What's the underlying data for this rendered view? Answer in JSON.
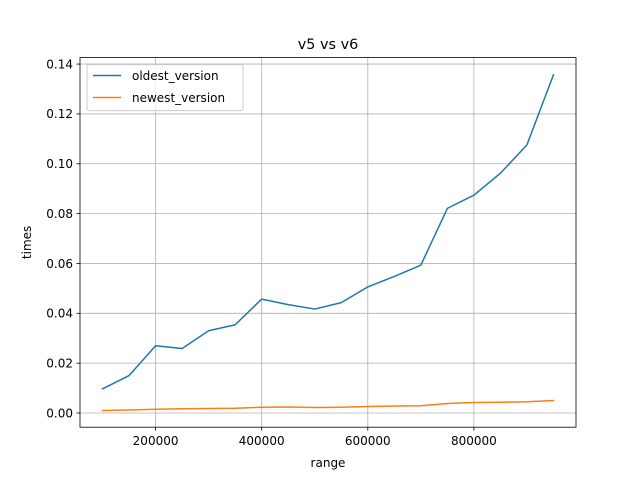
{
  "chart_data": {
    "type": "line",
    "title": "v5 vs v6",
    "xlabel": "range",
    "ylabel": "times",
    "xlim": [
      57500,
      992500
    ],
    "ylim": [
      -0.0057,
      0.1426
    ],
    "xticks": [
      200000,
      400000,
      600000,
      800000
    ],
    "xtick_labels": [
      "200000",
      "400000",
      "600000",
      "800000"
    ],
    "yticks": [
      0.0,
      0.02,
      0.04,
      0.06,
      0.08,
      0.1,
      0.12,
      0.14
    ],
    "ytick_labels": [
      "0.00",
      "0.02",
      "0.04",
      "0.06",
      "0.08",
      "0.10",
      "0.12",
      "0.14"
    ],
    "grid": true,
    "legend_position": "top-left",
    "x": [
      100000,
      150000,
      200000,
      250000,
      300000,
      350000,
      400000,
      450000,
      500000,
      550000,
      600000,
      650000,
      700000,
      750000,
      800000,
      850000,
      900000,
      950000
    ],
    "series": [
      {
        "name": "oldest_version",
        "color": "#1f77b4",
        "values": [
          0.0097,
          0.015,
          0.027,
          0.0259,
          0.033,
          0.0354,
          0.0457,
          0.0435,
          0.0417,
          0.0443,
          0.0506,
          0.0548,
          0.0593,
          0.0821,
          0.0874,
          0.0962,
          0.1076,
          0.1357
        ]
      },
      {
        "name": "newest_version",
        "color": "#ff7f0e",
        "values": [
          0.001,
          0.0012,
          0.0015,
          0.0017,
          0.0018,
          0.0019,
          0.0023,
          0.0024,
          0.0022,
          0.0023,
          0.0026,
          0.0028,
          0.0029,
          0.0038,
          0.0042,
          0.0043,
          0.0045,
          0.005
        ]
      }
    ]
  }
}
